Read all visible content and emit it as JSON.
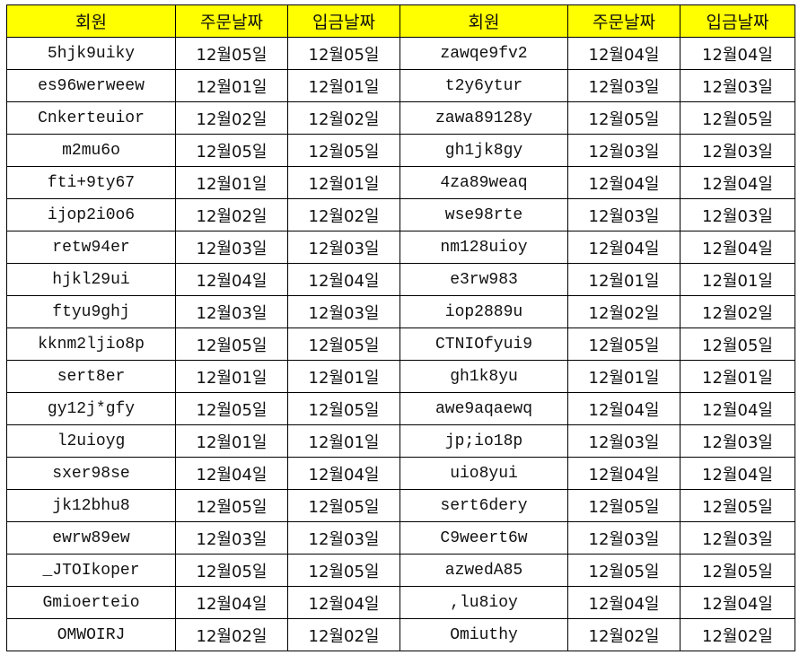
{
  "header": [
    "회원",
    "주문날짜",
    "입금날짜",
    "회원",
    "주문날짜",
    "입금날짜"
  ],
  "header_color": "#ffff00",
  "rows": [
    [
      "5hjk9uiky",
      "12월05일",
      "12월05일",
      "zawqe9fv2",
      "12월04일",
      "12월04일"
    ],
    [
      "es96werweew",
      "12월01일",
      "12월01일",
      "t2y6ytur",
      "12월03일",
      "12월03일"
    ],
    [
      "Cnkerteuior",
      "12월02일",
      "12월02일",
      "zawa89128y",
      "12월05일",
      "12월05일"
    ],
    [
      "m2mu6o",
      "12월05일",
      "12월05일",
      "gh1jk8gy",
      "12월03일",
      "12월03일"
    ],
    [
      "fti+9ty67",
      "12월01일",
      "12월01일",
      "4za89weaq",
      "12월04일",
      "12월04일"
    ],
    [
      "ijop2i0o6",
      "12월02일",
      "12월02일",
      "wse98rte",
      "12월03일",
      "12월03일"
    ],
    [
      "retw94er",
      "12월03일",
      "12월03일",
      "nm128uioy",
      "12월04일",
      "12월04일"
    ],
    [
      "hjkl29ui",
      "12월04일",
      "12월04일",
      "e3rw983",
      "12월01일",
      "12월01일"
    ],
    [
      "ftyu9ghj",
      "12월03일",
      "12월03일",
      "iop2889u",
      "12월02일",
      "12월02일"
    ],
    [
      "kknm2ljio8p",
      "12월05일",
      "12월05일",
      "CTNIOfyui9",
      "12월05일",
      "12월05일"
    ],
    [
      "sert8er",
      "12월01일",
      "12월01일",
      "gh1k8yu",
      "12월01일",
      "12월01일"
    ],
    [
      "gy12j*gfy",
      "12월05일",
      "12월05일",
      "awe9aqaewq",
      "12월04일",
      "12월04일"
    ],
    [
      "l2uioyg",
      "12월01일",
      "12월01일",
      "jp;io18p",
      "12월03일",
      "12월03일"
    ],
    [
      "sxer98se",
      "12월04일",
      "12월04일",
      "uio8yui",
      "12월04일",
      "12월04일"
    ],
    [
      "jk12bhu8",
      "12월05일",
      "12월05일",
      "sert6dery",
      "12월05일",
      "12월05일"
    ],
    [
      "ewrw89ew",
      "12월03일",
      "12월03일",
      "C9weert6w",
      "12월03일",
      "12월03일"
    ],
    [
      "_JTOIkoper",
      "12월05일",
      "12월05일",
      "azwedA85",
      "12월05일",
      "12월05일"
    ],
    [
      "Gmioerteio",
      "12월04일",
      "12월04일",
      ",lu8ioy",
      "12월04일",
      "12월04일"
    ],
    [
      "OMWOIRJ",
      "12월02일",
      "12월02일",
      "Omiuthy",
      "12월02일",
      "12월02일"
    ]
  ]
}
